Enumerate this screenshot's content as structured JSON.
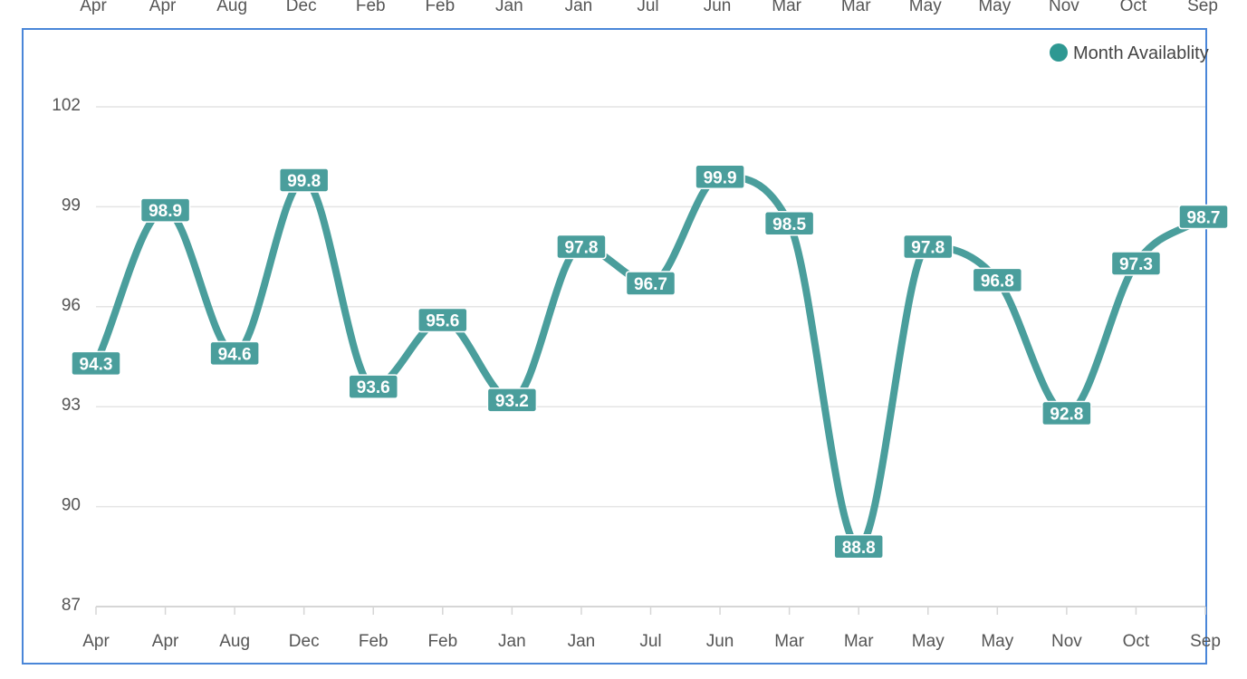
{
  "colors": {
    "series": "#4a9e9c",
    "frame": "#4a86d8",
    "grid": "#e4e4e4",
    "axis": "#d6d6d6",
    "text": "#555555"
  },
  "chart_data": {
    "type": "line",
    "title": "",
    "xlabel": "",
    "ylabel": "",
    "categories": [
      "Apr",
      "Apr",
      "Aug",
      "Dec",
      "Feb",
      "Feb",
      "Jan",
      "Jan",
      "Jul",
      "Jun",
      "Mar",
      "Mar",
      "May",
      "May",
      "Nov",
      "Oct",
      "Sep"
    ],
    "series": [
      {
        "name": "Month Availablity",
        "values": [
          94.3,
          98.9,
          94.6,
          99.8,
          93.6,
          95.6,
          93.2,
          97.8,
          96.7,
          99.9,
          98.5,
          88.8,
          97.8,
          96.8,
          92.8,
          97.3,
          98.7
        ]
      }
    ],
    "ylim": [
      87,
      102
    ],
    "yticks": [
      87,
      90,
      93,
      96,
      99,
      102
    ],
    "grid": true,
    "legend": "top-right",
    "data_labels": true,
    "smooth": true
  }
}
